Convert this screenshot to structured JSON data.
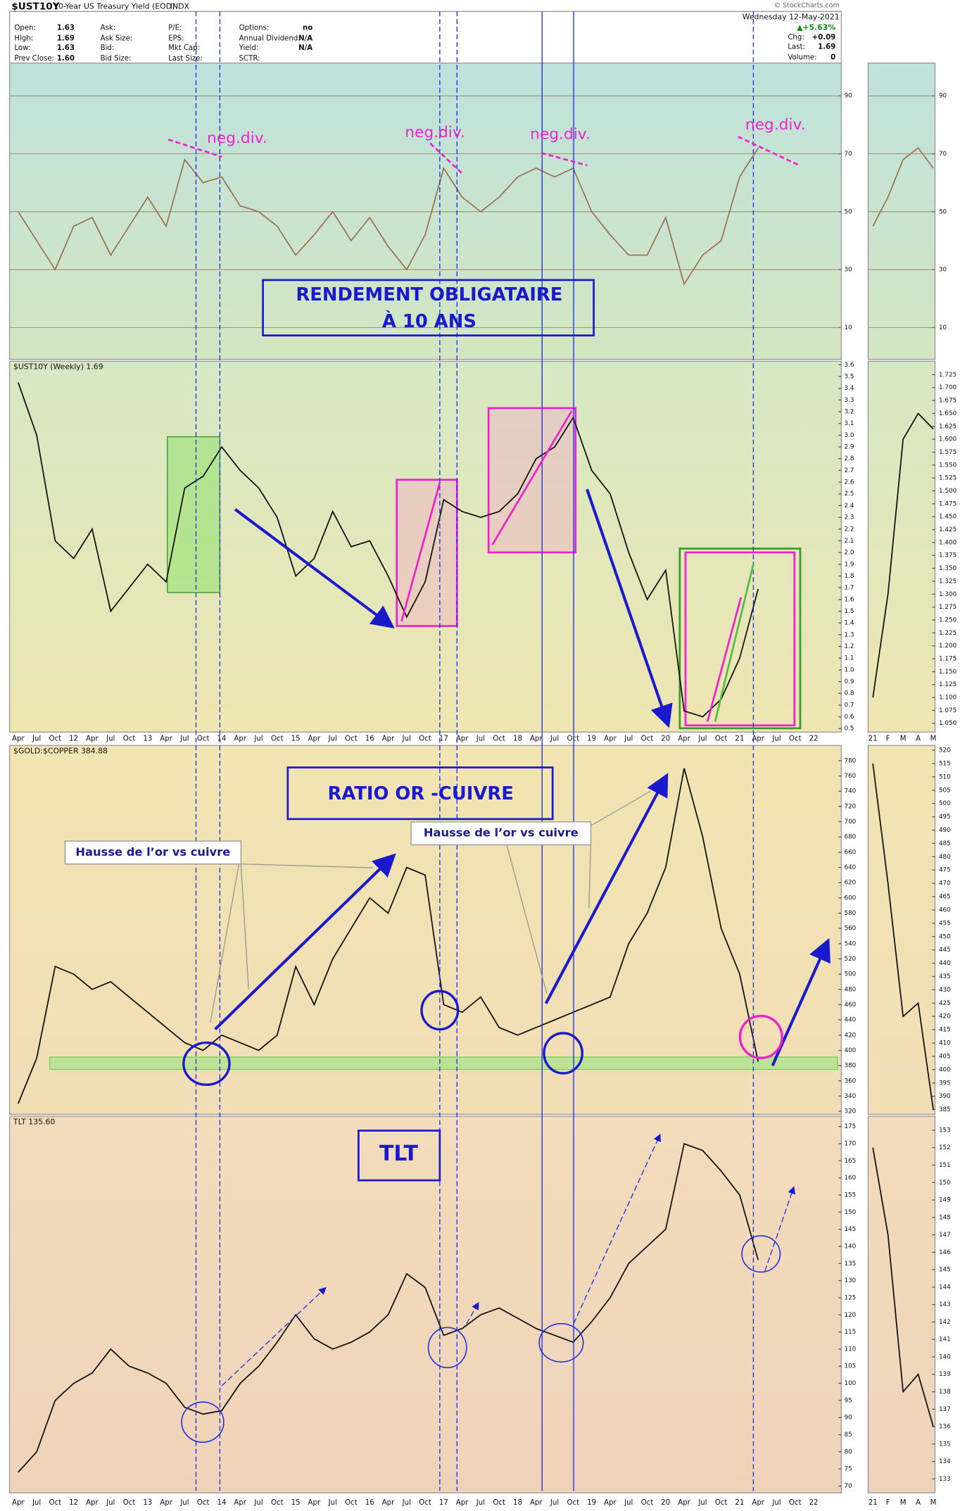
{
  "header": {
    "symbol": "$UST10Y",
    "name": "10-Year US Treasury Yield (EOD)",
    "exchange": "INDX",
    "source": "© StockCharts.com",
    "date": "Wednesday  12-May-2021",
    "change_pct": "▲+5.63%",
    "columns": [
      [
        {
          "label": "Open:",
          "value": "1.63"
        },
        {
          "label": "High:",
          "value": "1.69"
        },
        {
          "label": "Low:",
          "value": "1.63"
        },
        {
          "label": "Prev Close:",
          "value": "1.60"
        }
      ],
      [
        {
          "label": "Ask:"
        },
        {
          "label": "Ask Size:"
        },
        {
          "label": "Bid:"
        },
        {
          "label": "Bid Size:"
        }
      ],
      [
        {
          "label": "P/E:"
        },
        {
          "label": "EPS:"
        },
        {
          "label": "Mkt Cap:"
        },
        {
          "label": "Last Size:"
        }
      ],
      [
        {
          "label": "Options:",
          "value": "no"
        },
        {
          "label": "Annual Dividend:",
          "value": "N/A"
        },
        {
          "label": "Yield:",
          "value": "N/A"
        },
        {
          "label": "SCTR:"
        }
      ],
      [
        {
          "label": "Chg:",
          "value": "+0.09"
        },
        {
          "label": "Last:",
          "value": "1.69"
        },
        {
          "label": "Volume:",
          "value": "0"
        }
      ]
    ]
  },
  "chart_data": [
    {
      "type": "line",
      "categories": [
        "Apr",
        "Jul",
        "Oct",
        "12",
        "Apr",
        "Jul",
        "Oct",
        "13",
        "Apr",
        "Jul",
        "Oct",
        "14",
        "Apr",
        "Jul",
        "Oct",
        "15",
        "Apr",
        "Jul",
        "Oct",
        "16",
        "Apr",
        "Jul",
        "Oct",
        "17",
        "Apr",
        "Jul",
        "Oct",
        "18",
        "Apr",
        "Jul",
        "Oct",
        "19",
        "Apr",
        "Jul",
        "Oct",
        "20",
        "Apr",
        "Jul",
        "Oct",
        "21",
        "Apr",
        "Jul",
        "Oct",
        "22"
      ],
      "annotations": [
        "neg.div.",
        "neg.div.",
        "neg.div.",
        "neg.div.",
        "RENDEMENT OBLIGATAIRE",
        "À 10 ANS",
        "RATIO OR -CUIVRE",
        "Hausse de l’or vs cuivre",
        "Hausse de l’or vs cuivre",
        "TLT"
      ],
      "panels": [
        {
          "ylim": [
            0,
            100
          ],
          "yticks": [
            10,
            30,
            50,
            70,
            90
          ],
          "grid": true,
          "series": [
            {
              "color": "#9a7355",
              "values": [
                50,
                40,
                30,
                45,
                48,
                35,
                45,
                55,
                45,
                68,
                60,
                62,
                52,
                50,
                45,
                35,
                42,
                50,
                40,
                48,
                38,
                30,
                42,
                65,
                55,
                50,
                55,
                62,
                65,
                62,
                65,
                50,
                42,
                35,
                35,
                48,
                25,
                35,
                40,
                62,
                72,
                null,
                null,
                null
              ]
            }
          ]
        },
        {
          "ylim": [
            0.47,
            3.63
          ],
          "yticks": [
            3.6,
            3.5,
            3.4,
            3.3,
            3.2,
            3.1,
            {
              "value": 3,
              "label": "3.0"
            },
            2.9,
            2.8,
            2.7,
            2.6,
            2.5,
            2.4,
            2.3,
            2.2,
            2.1,
            {
              "value": 2,
              "label": "2.0"
            },
            1.9,
            1.8,
            1.7,
            1.6,
            1.5,
            1.4,
            1.3,
            1.2,
            1.1,
            {
              "value": 1,
              "label": "1.0"
            },
            0.9,
            0.8,
            0.7,
            0.6,
            0.5
          ],
          "series": [
            {
              "name": "$UST10Y (Weekly) 1.69",
              "color": "#111111",
              "values": [
                3.45,
                3.0,
                2.1,
                1.95,
                2.2,
                1.5,
                1.7,
                1.9,
                1.75,
                2.55,
                2.65,
                2.9,
                2.7,
                2.55,
                2.3,
                1.8,
                1.95,
                2.35,
                2.05,
                2.1,
                1.8,
                1.45,
                1.75,
                2.45,
                2.35,
                2.3,
                2.35,
                2.5,
                2.8,
                2.9,
                3.15,
                2.7,
                2.5,
                2.0,
                1.6,
                1.85,
                0.65,
                0.6,
                0.75,
                1.1,
                1.69,
                null,
                null,
                null
              ]
            }
          ]
        },
        {
          "ylim": [
            316,
            800
          ],
          "yticks": [
            780,
            760,
            740,
            720,
            700,
            680,
            660,
            640,
            620,
            600,
            580,
            560,
            540,
            520,
            500,
            480,
            460,
            440,
            420,
            400,
            380,
            360,
            340,
            320
          ],
          "series": [
            {
              "name": "$GOLD:$COPPER 384.88",
              "color": "#111111",
              "values": [
                330,
                390,
                510,
                500,
                480,
                490,
                470,
                450,
                430,
                410,
                400,
                420,
                410,
                400,
                420,
                510,
                460,
                520,
                560,
                600,
                580,
                640,
                630,
                460,
                450,
                470,
                430,
                420,
                430,
                440,
                450,
                460,
                470,
                540,
                580,
                640,
                770,
                680,
                560,
                500,
                385,
                null,
                null,
                null
              ]
            }
          ]
        },
        {
          "ylim": [
            68,
            178
          ],
          "yticks": [
            175,
            170,
            165,
            160,
            155,
            150,
            145,
            140,
            135,
            130,
            125,
            120,
            115,
            110,
            105,
            100,
            95,
            90,
            85,
            80,
            75,
            70
          ],
          "series": [
            {
              "name": "TLT 135.60",
              "color": "#111111",
              "values": [
                74,
                80,
                95,
                100,
                103,
                110,
                105,
                103,
                100,
                93,
                91,
                92,
                100,
                105,
                112,
                120,
                113,
                110,
                112,
                115,
                120,
                132,
                128,
                114,
                116,
                120,
                122,
                119,
                116,
                114,
                112,
                118,
                125,
                135,
                140,
                145,
                170,
                168,
                162,
                155,
                136,
                null,
                null,
                null
              ]
            }
          ]
        }
      ]
    },
    {
      "type": "line",
      "categories": [
        "21",
        "F",
        "M",
        "A",
        "M"
      ],
      "panels": [
        {
          "ylim": [
            0,
            100
          ],
          "yticks": [
            10,
            30,
            50,
            70,
            90
          ],
          "grid": true,
          "series": [
            {
              "color": "#9a7355",
              "values": [
                45,
                55,
                68,
                72,
                65
              ]
            }
          ]
        },
        {
          "ylim": [
            1.033,
            1.751
          ],
          "yticks": [
            1.725,
            {
              "value": 1.7,
              "label": "1.700"
            },
            1.675,
            {
              "value": 1.65,
              "label": "1.650"
            },
            1.625,
            {
              "value": 1.6,
              "label": "1.600"
            },
            1.575,
            {
              "value": 1.55,
              "label": "1.550"
            },
            1.525,
            {
              "value": 1.5,
              "label": "1.500"
            },
            1.475,
            {
              "value": 1.45,
              "label": "1.450"
            },
            1.425,
            {
              "value": 1.4,
              "label": "1.400"
            },
            1.375,
            {
              "value": 1.35,
              "label": "1.350"
            },
            1.325,
            {
              "value": 1.3,
              "label": "1.300"
            },
            1.275,
            {
              "value": 1.25,
              "label": "1.250"
            },
            1.225,
            {
              "value": 1.2,
              "label": "1.200"
            },
            1.175,
            {
              "value": 1.15,
              "label": "1.150"
            },
            1.125,
            {
              "value": 1.1,
              "label": "1.100"
            },
            1.075,
            {
              "value": 1.05,
              "label": "1.050"
            }
          ],
          "series": [
            {
              "color": "#111111",
              "values": [
                1.1,
                1.3,
                1.6,
                1.65,
                1.62
              ]
            }
          ]
        },
        {
          "ylim": [
            383.2,
            521.8
          ],
          "yticks": [
            520,
            515,
            510,
            505,
            500,
            495,
            490,
            485,
            480,
            475,
            470,
            465,
            460,
            455,
            450,
            445,
            440,
            435,
            430,
            425,
            420,
            415,
            410,
            405,
            400,
            395,
            390,
            385
          ],
          "series": [
            {
              "color": "#111111",
              "values": [
                515,
                470,
                420,
                425,
                385
              ]
            }
          ]
        },
        {
          "ylim": [
            132.2,
            153.8
          ],
          "yticks": [
            153,
            152,
            151,
            150,
            149,
            148,
            147,
            146,
            145,
            144,
            143,
            142,
            141,
            140,
            139,
            138,
            137,
            136,
            135,
            134,
            133
          ],
          "series": [
            {
              "color": "#111111",
              "values": [
                152,
                147,
                138,
                139,
                136
              ]
            }
          ]
        }
      ]
    }
  ]
}
